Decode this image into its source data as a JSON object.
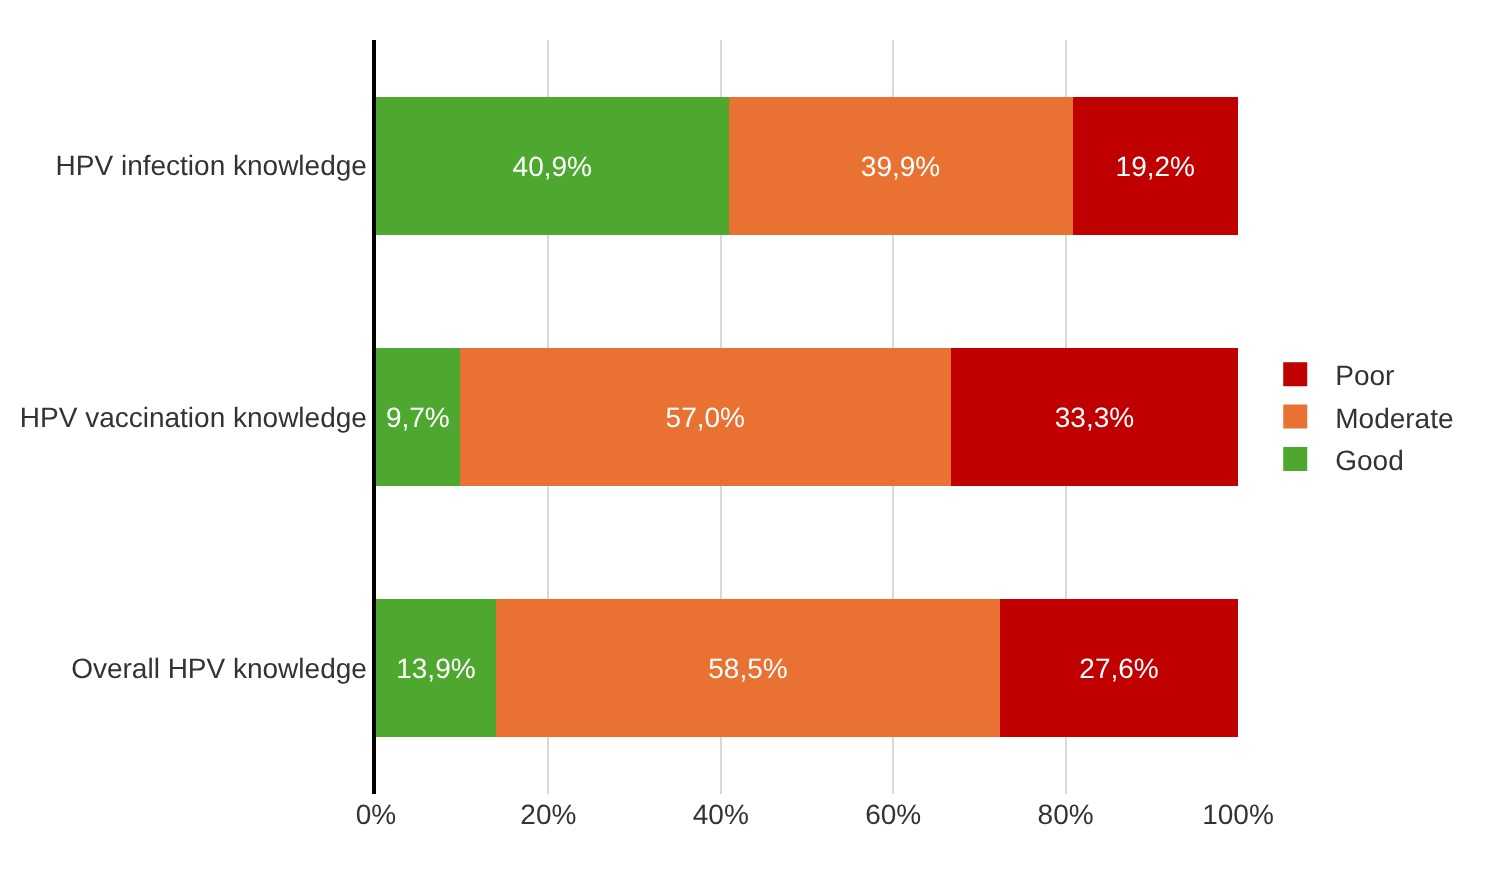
{
  "chart_data": {
    "type": "bar",
    "orientation": "horizontal",
    "stacked": true,
    "categories": [
      "HPV infection knowledge",
      "HPV vaccination knowledge",
      "Overall HPV knowledge"
    ],
    "series": [
      {
        "name": "Good",
        "color": "#4ea72e",
        "values": [
          40.9,
          9.7,
          13.9
        ],
        "value_labels": [
          "40,9%",
          "9,7%",
          "13,9%"
        ]
      },
      {
        "name": "Moderate",
        "color": "#e97132",
        "values": [
          39.9,
          57.0,
          58.5
        ],
        "value_labels": [
          "39,9%",
          "57,0%",
          "58,5%"
        ]
      },
      {
        "name": "Poor",
        "color": "#c00000",
        "values": [
          19.2,
          33.3,
          27.6
        ],
        "value_labels": [
          "19,2%",
          "33,3%",
          "27,6%"
        ]
      }
    ],
    "xlim": [
      0,
      100
    ],
    "xticks": [
      {
        "value": 0,
        "label": "0%"
      },
      {
        "value": 20,
        "label": "20%"
      },
      {
        "value": 40,
        "label": "40%"
      },
      {
        "value": 60,
        "label": "60%"
      },
      {
        "value": 80,
        "label": "80%"
      },
      {
        "value": 100,
        "label": "100%"
      }
    ],
    "grid": "x",
    "legend": "right"
  }
}
